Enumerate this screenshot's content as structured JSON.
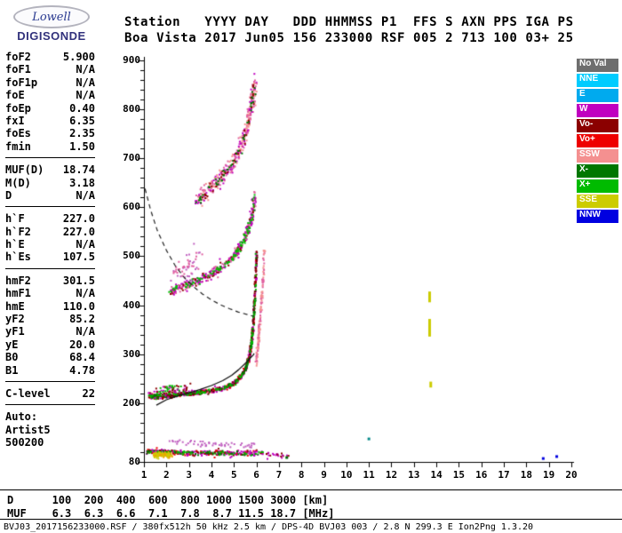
{
  "logo": {
    "top": "Lowell",
    "bottom": "DIGISONDE"
  },
  "header": {
    "line1": "Station   YYYY DAY   DDD HHMMSS P1  FFS S AXN PPS IGA PS",
    "line2": "Boa Vista 2017 Jun05 156 233000 RSF 005 2 713 100 03+ 25"
  },
  "params": {
    "groups": [
      {
        "rows": [
          [
            "foF2",
            "5.900"
          ],
          [
            "foF1",
            "N/A"
          ],
          [
            "foF1p",
            "N/A"
          ],
          [
            "foE",
            "N/A"
          ],
          [
            "foEp",
            "0.40"
          ],
          [
            "fxI",
            "6.35"
          ],
          [
            "foEs",
            "2.35"
          ],
          [
            "fmin",
            "1.50"
          ]
        ]
      },
      {
        "rows": [
          [
            "MUF(D)",
            "18.74"
          ],
          [
            "M(D)",
            "3.18"
          ],
          [
            "D",
            "N/A"
          ]
        ]
      },
      {
        "rows": [
          [
            "h`F",
            "227.0"
          ],
          [
            "h`F2",
            "227.0"
          ],
          [
            "h`E",
            "N/A"
          ],
          [
            "h`Es",
            "107.5"
          ]
        ]
      },
      {
        "rows": [
          [
            "hmF2",
            "301.5"
          ],
          [
            "hmF1",
            "N/A"
          ],
          [
            "hmE",
            "110.0"
          ],
          [
            "yF2",
            "85.2"
          ],
          [
            "yF1",
            "N/A"
          ],
          [
            "yE",
            "20.0"
          ],
          [
            "B0",
            "68.4"
          ],
          [
            "B1",
            "4.78"
          ]
        ]
      },
      {
        "rows": [
          [
            "C-level",
            "22"
          ]
        ]
      },
      {
        "rows": [
          [
            "Auto:",
            ""
          ],
          [
            "Artist5",
            ""
          ],
          [
            "500200",
            ""
          ]
        ]
      }
    ]
  },
  "legend": {
    "items": [
      {
        "label": "No Val",
        "color": "#6e6e6e"
      },
      {
        "label": "NNE",
        "color": "#00ccff"
      },
      {
        "label": "E",
        "color": "#00aaee"
      },
      {
        "label": "W",
        "color": "#c000c0"
      },
      {
        "label": "Vo-",
        "color": "#8b0000"
      },
      {
        "label": "Vo+",
        "color": "#ee0000"
      },
      {
        "label": "SSW",
        "color": "#f49090"
      },
      {
        "label": "X-",
        "color": "#007700"
      },
      {
        "label": "X+",
        "color": "#00bb00"
      },
      {
        "label": "SSE",
        "color": "#cccc00"
      },
      {
        "label": "NNW",
        "color": "#0000e0"
      }
    ]
  },
  "muf_table": {
    "row1_label": "D",
    "distances": [
      100,
      200,
      400,
      600,
      800,
      1000,
      1500,
      3000
    ],
    "distance_unit": "[km]",
    "row2_label": "MUF",
    "muf_values": [
      6.3,
      6.3,
      6.6,
      7.1,
      7.8,
      8.7,
      11.5,
      18.7
    ],
    "muf_unit": "[MHz]"
  },
  "status_line": "BVJ03_2017156233000.RSF / 380fx512h 50 kHz 2.5 km / DPS-4D BVJ03 003 / 2.8 N 299.3 E Ion2Png 1.3.20",
  "chart_data": {
    "type": "scatter",
    "xlabel": "MHz",
    "ylabel": "km",
    "xlim": [
      1,
      20
    ],
    "ylim": [
      80,
      900
    ],
    "x_ticks": [
      1,
      2,
      3,
      4,
      5,
      6,
      7,
      8,
      9,
      10,
      11,
      12,
      13,
      14,
      15,
      16,
      17,
      18,
      19,
      20
    ],
    "y_tick_labels": [
      80,
      200,
      300,
      400,
      500,
      600,
      700,
      800,
      900
    ],
    "y_minor_step": 20,
    "key_values": {
      "foF2": 5.9,
      "fxI": 6.35,
      "hmF2": 301.5,
      "hF": 227.0,
      "MUF_3000": 18.74
    },
    "traces": [
      {
        "name": "f-trace-1hop-magenta",
        "colors": [
          "#c000c0",
          "#c000c0",
          "#ee0000",
          "#8b0000"
        ],
        "n": 430,
        "jx": 0.05,
        "jy": 6,
        "size": 2,
        "pts": [
          [
            1.15,
            218
          ],
          [
            1.6,
            215
          ],
          [
            2.1,
            217
          ],
          [
            2.6,
            220
          ],
          [
            3.1,
            222
          ],
          [
            3.6,
            225
          ],
          [
            4.1,
            228
          ],
          [
            4.6,
            234
          ],
          [
            5,
            244
          ],
          [
            5.3,
            257
          ],
          [
            5.5,
            274
          ],
          [
            5.65,
            297
          ],
          [
            5.75,
            327
          ],
          [
            5.83,
            368
          ],
          [
            5.89,
            415
          ],
          [
            5.94,
            465
          ],
          [
            5.97,
            512
          ]
        ]
      },
      {
        "name": "f-trace-1hop-darkred",
        "colors": [
          "#8b0000",
          "#600000"
        ],
        "n": 190,
        "jx": 0.04,
        "jy": 4,
        "size": 2,
        "pts": [
          [
            1.15,
            218
          ],
          [
            1.6,
            215
          ],
          [
            2.1,
            217
          ],
          [
            2.6,
            220
          ],
          [
            3.1,
            222
          ],
          [
            3.6,
            225
          ],
          [
            4.1,
            228
          ],
          [
            4.6,
            234
          ],
          [
            5,
            244
          ],
          [
            5.3,
            257
          ],
          [
            5.5,
            274
          ],
          [
            5.65,
            297
          ],
          [
            5.75,
            327
          ],
          [
            5.83,
            368
          ],
          [
            5.89,
            415
          ],
          [
            5.94,
            465
          ],
          [
            5.97,
            512
          ]
        ]
      },
      {
        "name": "f-trace-1hop-green",
        "colors": [
          "#00bb00",
          "#007700"
        ],
        "n": 190,
        "jx": 0.05,
        "jy": 5,
        "size": 2,
        "pts": [
          [
            1.15,
            218
          ],
          [
            1.6,
            215
          ],
          [
            2.1,
            217
          ],
          [
            2.6,
            220
          ],
          [
            3.1,
            222
          ],
          [
            3.6,
            225
          ],
          [
            4.1,
            228
          ],
          [
            4.6,
            234
          ],
          [
            5,
            244
          ],
          [
            5.3,
            257
          ],
          [
            5.5,
            274
          ],
          [
            5.65,
            297
          ],
          [
            5.75,
            327
          ],
          [
            5.83,
            368
          ],
          [
            5.89,
            415
          ],
          [
            5.94,
            465
          ],
          [
            5.97,
            512
          ]
        ]
      },
      {
        "name": "f-trace-xmode-pink",
        "colors": [
          "#f49090",
          "#e060a0"
        ],
        "n": 140,
        "jx": 0.05,
        "jy": 10,
        "size": 2,
        "pts": [
          [
            5.95,
            285
          ],
          [
            6.05,
            330
          ],
          [
            6.15,
            385
          ],
          [
            6.25,
            450
          ],
          [
            6.32,
            515
          ]
        ]
      },
      {
        "name": "f-trace-start-spray",
        "colors": [
          "#c000c0",
          "#8b0000",
          "#00bb00"
        ],
        "n": 80,
        "jx": 0.5,
        "jy": 14,
        "size": 2,
        "pts": [
          [
            1.7,
            226
          ],
          [
            2.2,
            229
          ],
          [
            2.7,
            227
          ]
        ]
      },
      {
        "name": "f-trace-2hop",
        "colors": [
          "#c000c0",
          "#e060a0",
          "#8b0000",
          "#c000c0"
        ],
        "n": 340,
        "jx": 0.12,
        "jy": 11,
        "size": 2,
        "pts": [
          [
            2.05,
            428
          ],
          [
            2.5,
            438
          ],
          [
            3,
            446
          ],
          [
            3.5,
            455
          ],
          [
            4,
            466
          ],
          [
            4.4,
            478
          ],
          [
            4.8,
            494
          ],
          [
            5.1,
            510
          ],
          [
            5.35,
            528
          ],
          [
            5.55,
            550
          ],
          [
            5.7,
            572
          ],
          [
            5.82,
            600
          ],
          [
            5.9,
            625
          ]
        ]
      },
      {
        "name": "f-trace-2hop-green",
        "colors": [
          "#00bb00"
        ],
        "n": 100,
        "jx": 0.1,
        "jy": 8,
        "size": 2,
        "pts": [
          [
            2.05,
            428
          ],
          [
            2.5,
            438
          ],
          [
            3,
            446
          ],
          [
            3.5,
            455
          ],
          [
            4,
            466
          ],
          [
            4.4,
            478
          ],
          [
            4.8,
            494
          ],
          [
            5.1,
            510
          ],
          [
            5.35,
            528
          ],
          [
            5.55,
            550
          ],
          [
            5.7,
            572
          ],
          [
            5.82,
            600
          ],
          [
            5.9,
            625
          ]
        ]
      },
      {
        "name": "f-trace-2hop-spray",
        "colors": [
          "#c060c0",
          "#e060a0"
        ],
        "n": 55,
        "jx": 0.35,
        "jy": 26,
        "size": 2,
        "pts": [
          [
            2.3,
            462
          ],
          [
            2.8,
            480
          ],
          [
            3.3,
            498
          ]
        ]
      },
      {
        "name": "f-trace-3hop",
        "colors": [
          "#e060a0",
          "#c000c0",
          "#f49090"
        ],
        "n": 330,
        "jx": 0.16,
        "jy": 16,
        "size": 2,
        "pts": [
          [
            3.3,
            612
          ],
          [
            3.7,
            632
          ],
          [
            4.1,
            650
          ],
          [
            4.5,
            667
          ],
          [
            4.9,
            690
          ],
          [
            5.2,
            716
          ],
          [
            5.45,
            747
          ],
          [
            5.65,
            785
          ],
          [
            5.78,
            822
          ],
          [
            5.88,
            860
          ]
        ]
      },
      {
        "name": "f-trace-3hop-dark",
        "colors": [
          "#8b0000",
          "#007700"
        ],
        "n": 85,
        "jx": 0.12,
        "jy": 12,
        "size": 2,
        "pts": [
          [
            3.3,
            612
          ],
          [
            3.7,
            632
          ],
          [
            4.1,
            650
          ],
          [
            4.5,
            667
          ],
          [
            4.9,
            690
          ],
          [
            5.2,
            716
          ],
          [
            5.45,
            747
          ],
          [
            5.65,
            785
          ],
          [
            5.78,
            822
          ],
          [
            5.88,
            860
          ]
        ]
      },
      {
        "name": "es-layer",
        "colors": [
          "#c000c0",
          "#8b0000",
          "#ee0000",
          "#c000c0"
        ],
        "n": 300,
        "jx": 0.05,
        "jy": 6,
        "size": 2,
        "pts": [
          [
            1.1,
            103
          ],
          [
            2,
            101
          ],
          [
            3,
            100
          ],
          [
            4,
            100
          ],
          [
            5,
            100
          ],
          [
            6.3,
            99
          ]
        ]
      },
      {
        "name": "es-layer-green",
        "colors": [
          "#00bb00",
          "#007700"
        ],
        "n": 85,
        "jx": 0.05,
        "jy": 5,
        "size": 2,
        "pts": [
          [
            1.1,
            103
          ],
          [
            2,
            101
          ],
          [
            3,
            100
          ],
          [
            4,
            100
          ],
          [
            5,
            100
          ],
          [
            6.3,
            99
          ]
        ]
      },
      {
        "name": "es-yellow-blob",
        "colors": [
          "#cccc00",
          "#f0a000",
          "#cccc00"
        ],
        "n": 130,
        "jx": 0.14,
        "jy": 5,
        "size": 2,
        "pts": [
          [
            1.45,
            97
          ],
          [
            1.8,
            96
          ],
          [
            2.15,
            97
          ]
        ]
      },
      {
        "name": "es-upper-spray",
        "colors": [
          "#c060c0"
        ],
        "n": 55,
        "jx": 0.3,
        "jy": 8,
        "size": 2,
        "pts": [
          [
            2.2,
            124
          ],
          [
            3.2,
            121
          ],
          [
            4.2,
            119
          ],
          [
            5.2,
            118
          ],
          [
            6.1,
            116
          ]
        ]
      },
      {
        "name": "es-tail",
        "colors": [
          "#c000c0",
          "#8b0000"
        ],
        "n": 22,
        "jx": 0.1,
        "jy": 5,
        "size": 2,
        "pts": [
          [
            6.35,
            98
          ],
          [
            7.35,
            95
          ]
        ]
      }
    ],
    "points": [
      {
        "x": 11.0,
        "y": 127,
        "color": "#008888",
        "size": 3
      },
      {
        "x": 18.75,
        "y": 87,
        "color": "#0000e0",
        "size": 3
      },
      {
        "x": 19.35,
        "y": 91,
        "color": "#0000e0",
        "size": 3
      },
      {
        "x": 7.35,
        "y": 89,
        "color": "#006600",
        "size": 3
      }
    ],
    "rfi_bars": [
      {
        "x": 13.7,
        "y1": 406,
        "y2": 428,
        "color": "#cccc00",
        "w": 3
      },
      {
        "x": 13.7,
        "y1": 336,
        "y2": 372,
        "color": "#cccc00",
        "w": 3
      },
      {
        "x": 13.75,
        "y1": 232,
        "y2": 244,
        "color": "#cccc00",
        "w": 3
      }
    ],
    "curves": [
      {
        "name": "muf-transmission-curve",
        "dash": [
          5,
          4
        ],
        "color": "#222222",
        "width": 1.2,
        "pts": [
          [
            1.05,
            638
          ],
          [
            1.3,
            594
          ],
          [
            1.6,
            552
          ],
          [
            2,
            512
          ],
          [
            2.4,
            480
          ],
          [
            2.8,
            456
          ],
          [
            3.2,
            438
          ],
          [
            3.6,
            423
          ],
          [
            4,
            411
          ],
          [
            4.4,
            401
          ],
          [
            4.8,
            393
          ],
          [
            5.2,
            386
          ],
          [
            5.6,
            381
          ],
          [
            5.9,
            377
          ]
        ]
      },
      {
        "name": "true-height-profile",
        "dash": [],
        "color": "#111111",
        "width": 1.3,
        "pts": [
          [
            1.55,
            196
          ],
          [
            2,
            207
          ],
          [
            2.5,
            215
          ],
          [
            3,
            221
          ],
          [
            3.5,
            228
          ],
          [
            4,
            236
          ],
          [
            4.5,
            246
          ],
          [
            4.9,
            257
          ],
          [
            5.2,
            268
          ],
          [
            5.5,
            281
          ],
          [
            5.7,
            291
          ],
          [
            5.85,
            298
          ],
          [
            5.9,
            301.5
          ]
        ]
      }
    ]
  }
}
